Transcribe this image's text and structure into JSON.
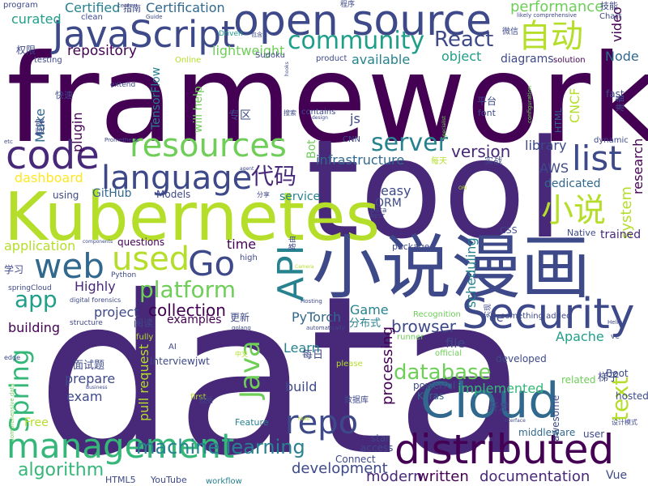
{
  "palette": [
    "#440154",
    "#482878",
    "#3e4989",
    "#31688e",
    "#26828e",
    "#1f9e89",
    "#35b779",
    "#6ece58",
    "#b5de2b",
    "#fde725"
  ],
  "words": [
    {
      "text": "framework",
      "color": "#440154"
    },
    {
      "text": "data",
      "color": "#482878"
    },
    {
      "text": "tool",
      "color": "#482878"
    },
    {
      "text": "Kubernetes",
      "color": "#b5de2b"
    },
    {
      "text": "open source",
      "color": "#3e4989"
    },
    {
      "text": "小说漫画",
      "color": "#3e4989"
    },
    {
      "text": "Security",
      "color": "#3e4989"
    },
    {
      "text": "distributed",
      "color": "#440154"
    },
    {
      "text": "Cloud",
      "color": "#31688e"
    },
    {
      "text": "JavaScript",
      "color": "#3e4989"
    },
    {
      "text": "management",
      "color": "#35b779"
    },
    {
      "text": "code",
      "color": "#482878"
    },
    {
      "text": "resources",
      "color": "#6ece58"
    },
    {
      "text": "language",
      "color": "#3e4989"
    },
    {
      "text": "web",
      "color": "#31688e"
    },
    {
      "text": "community",
      "color": "#1f9e89"
    },
    {
      "text": "自动",
      "color": "#b5de2b"
    },
    {
      "text": "list",
      "color": "#3e4989"
    },
    {
      "text": "Go",
      "color": "#3e4989"
    },
    {
      "text": "used",
      "color": "#b5de2b"
    },
    {
      "text": "repo",
      "color": "#3e4989"
    },
    {
      "text": "小说",
      "color": "#b5de2b"
    },
    {
      "text": "API",
      "color": "#26828e"
    },
    {
      "text": "Spring",
      "color": "#35b779"
    },
    {
      "text": "Java",
      "color": "#6ece58"
    },
    {
      "text": "代码",
      "color": "#482878"
    },
    {
      "text": "React",
      "color": "#3e4989"
    },
    {
      "text": "server",
      "color": "#26828e"
    },
    {
      "text": "database",
      "color": "#6ece58"
    },
    {
      "text": "platform",
      "color": "#6ece58"
    },
    {
      "text": "app",
      "color": "#1f9e89"
    },
    {
      "text": "text",
      "color": "#b5de2b"
    },
    {
      "text": "machine learning",
      "color": "#26828e"
    },
    {
      "text": "algorithm",
      "color": "#35b779"
    },
    {
      "text": "collection",
      "color": "#440154"
    },
    {
      "text": "version",
      "color": "#482878"
    },
    {
      "text": "browser",
      "color": "#3e4989"
    },
    {
      "text": "modern",
      "color": "#482878"
    },
    {
      "text": "written",
      "color": "#440154"
    },
    {
      "text": "documentation",
      "color": "#482878"
    },
    {
      "text": "development",
      "color": "#3e4989"
    },
    {
      "text": "performance",
      "color": "#6ece58"
    },
    {
      "text": "infrastructure",
      "color": "#31688e"
    },
    {
      "text": "repository",
      "color": "#440154"
    },
    {
      "text": "curated",
      "color": "#1f9e89"
    },
    {
      "text": "Certification",
      "color": "#31688e"
    },
    {
      "text": "Certified",
      "color": "#26828e"
    },
    {
      "text": "lightweight",
      "color": "#6ece58"
    },
    {
      "text": "available",
      "color": "#26828e"
    },
    {
      "text": "object",
      "color": "#1f9e89"
    },
    {
      "text": "diagrams",
      "color": "#3e4989"
    },
    {
      "text": "Node",
      "color": "#31688e"
    },
    {
      "text": "video",
      "color": "#440154"
    },
    {
      "text": "library",
      "color": "#3e4989"
    },
    {
      "text": "AWS",
      "color": "#3e4989"
    },
    {
      "text": "dedicated",
      "color": "#31688e"
    },
    {
      "text": "research",
      "color": "#440154"
    },
    {
      "text": "system",
      "color": "#b5de2b"
    },
    {
      "text": "trained",
      "color": "#482878"
    },
    {
      "text": "scheduling",
      "color": "#26828e"
    },
    {
      "text": "Apache",
      "color": "#1f9e89"
    },
    {
      "text": "processing",
      "color": "#440154"
    },
    {
      "text": "file",
      "color": "#3e4989"
    },
    {
      "text": "Learn",
      "color": "#26828e"
    },
    {
      "text": "build",
      "color": "#3e4989"
    },
    {
      "text": "implemented",
      "color": "#35b779"
    },
    {
      "text": "prepare",
      "color": "#3e4989"
    },
    {
      "text": "exam",
      "color": "#3e4989"
    },
    {
      "text": "pull request",
      "color": "#b5de2b"
    },
    {
      "text": "Game",
      "color": "#26828e"
    },
    {
      "text": "PyTorch",
      "color": "#31688e"
    },
    {
      "text": "examples",
      "color": "#440154"
    },
    {
      "text": "project",
      "color": "#3e4989"
    },
    {
      "text": "building",
      "color": "#440154"
    },
    {
      "text": "Highly",
      "color": "#482878"
    },
    {
      "text": "time",
      "color": "#440154"
    },
    {
      "text": "application",
      "color": "#b5de2b"
    },
    {
      "text": "GitHub",
      "color": "#31688e"
    },
    {
      "text": "dashboard",
      "color": "#fde725"
    },
    {
      "text": "plugin",
      "color": "#440154"
    },
    {
      "text": "Make",
      "color": "#31688e"
    },
    {
      "text": "TensorFlow",
      "color": "#26828e"
    },
    {
      "text": "will help",
      "color": "#6ece58"
    },
    {
      "text": "service",
      "color": "#26828e"
    },
    {
      "text": "easy",
      "color": "#3e4989"
    },
    {
      "text": "ORM",
      "color": "#3e4989"
    },
    {
      "text": "Bot",
      "color": "#6ece58"
    },
    {
      "text": "questions",
      "color": "#440154"
    },
    {
      "text": "Models",
      "color": "#3e4989"
    },
    {
      "text": "using",
      "color": "#3e4989"
    },
    {
      "text": "Free",
      "color": "#b5de2b"
    },
    {
      "text": "Interview",
      "color": "#3e4989"
    },
    {
      "text": "jwt",
      "color": "#3e4989"
    },
    {
      "text": "Keras",
      "color": "#31688e"
    },
    {
      "text": "powerful",
      "color": "#3e4989"
    },
    {
      "text": "awesome",
      "color": "#3e4989"
    },
    {
      "text": "middleware",
      "color": "#31688e"
    },
    {
      "text": "user",
      "color": "#3e4989"
    },
    {
      "text": "developed",
      "color": "#3e4989"
    },
    {
      "text": "related",
      "color": "#6ece58"
    },
    {
      "text": "Boot",
      "color": "#3e4989"
    },
    {
      "text": "hosted",
      "color": "#3e4989"
    },
    {
      "text": "Vue",
      "color": "#3e4989"
    },
    {
      "text": "star",
      "color": "#3e4989"
    },
    {
      "text": "access",
      "color": "#3e4989"
    },
    {
      "text": "Connect",
      "color": "#3e4989"
    },
    {
      "text": "YouTube",
      "color": "#3e4989"
    },
    {
      "text": "workflow",
      "color": "#26828e"
    },
    {
      "text": "HTML5",
      "color": "#3e4989"
    },
    {
      "text": "Feature",
      "color": "#26828e"
    },
    {
      "text": "CSS",
      "color": "#3e4989"
    },
    {
      "text": "Native",
      "color": "#3e4989"
    },
    {
      "text": "package",
      "color": "#3e4989"
    },
    {
      "text": "HTML",
      "color": "#31688e"
    },
    {
      "text": "font",
      "color": "#3e4989"
    },
    {
      "text": "CNCF",
      "color": "#b5de2b"
    },
    {
      "text": "fast",
      "color": "#3e4989"
    },
    {
      "text": "dynamic",
      "color": "#3e4989"
    },
    {
      "text": "solution",
      "color": "#440154"
    },
    {
      "text": "Chart",
      "color": "#3e4989"
    },
    {
      "text": "product",
      "color": "#3e4989"
    },
    {
      "text": "Sudoku",
      "color": "#3e4989"
    },
    {
      "text": "Online",
      "color": "#b5de2b"
    },
    {
      "text": "testing",
      "color": "#3e4989"
    },
    {
      "text": "program",
      "color": "#3e4989"
    },
    {
      "text": "clean",
      "color": "#3e4989"
    },
    {
      "text": "center",
      "color": "#3e4989"
    },
    {
      "text": "Guide",
      "color": "#3e4989"
    },
    {
      "text": "Driven",
      "color": "#1f9e89"
    },
    {
      "text": "extend",
      "color": "#3e4989"
    },
    {
      "text": "Prometheus",
      "color": "#3e4989"
    },
    {
      "text": "agent",
      "color": "#3e4989"
    },
    {
      "text": "digital forensics",
      "color": "#3e4989"
    },
    {
      "text": "Python",
      "color": "#3e4989"
    },
    {
      "text": "springCloud",
      "color": "#3e4989"
    },
    {
      "text": "high",
      "color": "#3e4989"
    },
    {
      "text": "Hosting",
      "color": "#3e4989"
    },
    {
      "text": "Recognition",
      "color": "#6ece58"
    },
    {
      "text": "something added",
      "color": "#3e4989"
    },
    {
      "text": "runner",
      "color": "#6ece58"
    },
    {
      "text": "official",
      "color": "#6ece58"
    },
    {
      "text": "please",
      "color": "#b5de2b"
    },
    {
      "text": "AI",
      "color": "#3e4989"
    },
    {
      "text": "first",
      "color": "#b5de2b"
    },
    {
      "text": "fully",
      "color": "#b5de2b"
    },
    {
      "text": "edge",
      "color": "#3e4989"
    },
    {
      "text": "golang",
      "color": "#3e4989"
    },
    {
      "text": "automatically",
      "color": "#3e4989"
    },
    {
      "text": "contains",
      "color": "#3e4989"
    },
    {
      "text": "design",
      "color": "#3e4989"
    },
    {
      "text": "Specialist",
      "color": "#6ece58"
    },
    {
      "text": "likely comprehensive",
      "color": "#3e4989"
    },
    {
      "text": "configuration",
      "color": "#6ece58"
    },
    {
      "text": "js",
      "color": "#3e4989"
    },
    {
      "text": "CNN",
      "color": "#3e4989"
    },
    {
      "text": "etc",
      "color": "#3e4989"
    },
    {
      "text": "components",
      "color": "#3e4989"
    },
    {
      "text": "comprehensive data",
      "color": "#6ece58"
    },
    {
      "text": "structure",
      "color": "#3e4989"
    },
    {
      "text": "ve",
      "color": "#3e4989"
    },
    {
      "text": "Helm",
      "color": "#3e4989"
    },
    {
      "text": "de",
      "color": "#3e4989"
    },
    {
      "text": "para",
      "color": "#3e4989"
    },
    {
      "text": "REST",
      "color": "#3e4989"
    },
    {
      "text": "指南",
      "color": "#3e4989"
    },
    {
      "text": "技能",
      "color": "#3e4989"
    },
    {
      "text": "微信",
      "color": "#3e4989"
    },
    {
      "text": "程序",
      "color": "#3e4989"
    },
    {
      "text": "包含",
      "color": "#3e4989"
    },
    {
      "text": "权限",
      "color": "#3e4989"
    },
    {
      "text": "快速",
      "color": "#3e4989"
    },
    {
      "text": "框架",
      "color": "#3e4989"
    },
    {
      "text": "专区",
      "color": "#3e4989"
    },
    {
      "text": "平台",
      "color": "#3e4989"
    },
    {
      "text": "每天",
      "color": "#b5de2b"
    },
    {
      "text": "实战",
      "color": "#3e4989"
    },
    {
      "text": "分享",
      "color": "#3e4989"
    },
    {
      "text": "学习",
      "color": "#3e4989"
    },
    {
      "text": "路由",
      "color": "#3e4989"
    },
    {
      "text": "更新",
      "color": "#3e4989"
    },
    {
      "text": "阅读",
      "color": "#3e4989"
    },
    {
      "text": "分布式",
      "color": "#26828e"
    },
    {
      "text": "实现",
      "color": "#3e4989"
    },
    {
      "text": "每日",
      "color": "#3e4989"
    },
    {
      "text": "面试题",
      "color": "#3e4989"
    },
    {
      "text": "开发",
      "color": "#3e4989"
    },
    {
      "text": "梯子",
      "color": "#3e4989"
    },
    {
      "text": "设计模式",
      "color": "#3e4989"
    },
    {
      "text": "数据库",
      "color": "#3e4989"
    },
    {
      "text": "包括",
      "color": "#3e4989"
    },
    {
      "text": "中文",
      "color": "#b5de2b"
    },
    {
      "text": "搜索",
      "color": "#3e4989"
    },
    {
      "text": "准备",
      "color": "#3e4989"
    },
    {
      "text": "Multi",
      "color": "#b5de2b"
    },
    {
      "text": "interface",
      "color": "#3e4989"
    },
    {
      "text": "Business",
      "color": "#3e4989"
    },
    {
      "text": "Camera",
      "color": "#b5de2b"
    },
    {
      "text": "ORI",
      "color": "#b5de2b"
    },
    {
      "text": "hooks",
      "color": "#3e4989"
    }
  ]
}
